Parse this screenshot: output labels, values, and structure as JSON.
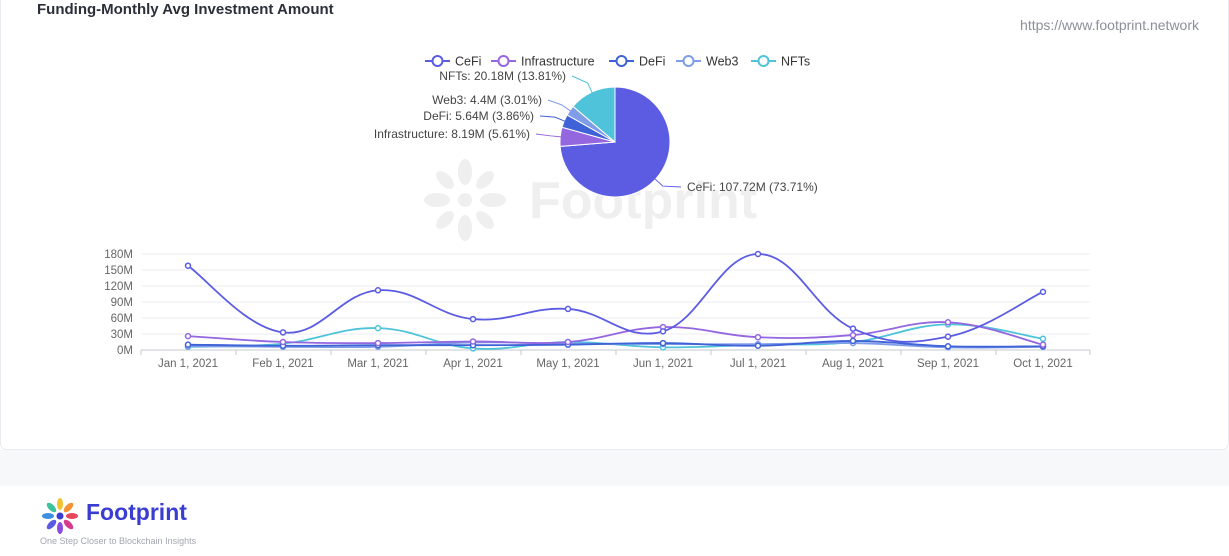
{
  "header": {
    "title": "Funding-Monthly Avg Investment Amount",
    "url": "https://www.footprint.network"
  },
  "watermark": {
    "text": "Footprint"
  },
  "footer": {
    "brand": "Footprint",
    "tagline": "One Step Closer to Blockchain Insights"
  },
  "colors": {
    "CeFi": "#5b5ce2",
    "Infrastructure": "#9466e0",
    "DeFi": "#3f62d6",
    "Web3": "#7e9ce8",
    "NFTs": "#4fc3d9"
  },
  "chart_data": [
    {
      "type": "pie",
      "legend": [
        "CeFi",
        "Infrastructure",
        "DeFi",
        "Web3",
        "NFTs"
      ],
      "legend_position": "top",
      "slices": [
        {
          "name": "CeFi",
          "value": 107.72,
          "label": "CeFi: 107.72M (73.71%)"
        },
        {
          "name": "Infrastructure",
          "value": 8.19,
          "label": "Infrastructure: 8.19M (5.61%)"
        },
        {
          "name": "DeFi",
          "value": 5.64,
          "label": "DeFi: 5.64M (3.86%)"
        },
        {
          "name": "Web3",
          "value": 4.4,
          "label": "Web3: 4.4M (3.01%)"
        },
        {
          "name": "NFTs",
          "value": 20.18,
          "label": "NFTs: 20.18M (13.81%)"
        }
      ]
    },
    {
      "type": "line",
      "x": [
        "Jan 1, 2021",
        "Feb 1, 2021",
        "Mar 1, 2021",
        "Apr 1, 2021",
        "May 1, 2021",
        "Jun 1, 2021",
        "Jul 1, 2021",
        "Aug 1, 2021",
        "Sep 1, 2021",
        "Oct 1, 2021"
      ],
      "y_ticks": [
        "0M",
        "30M",
        "60M",
        "90M",
        "120M",
        "150M",
        "180M"
      ],
      "ylim": [
        0,
        180
      ],
      "grid": true,
      "series": [
        {
          "name": "CeFi",
          "values": [
            158,
            33,
            112,
            58,
            77,
            35,
            180,
            40,
            25,
            109
          ]
        },
        {
          "name": "Infrastructure",
          "values": [
            26,
            15,
            13,
            16,
            15,
            43,
            24,
            28,
            52,
            10
          ]
        },
        {
          "name": "DeFi",
          "values": [
            10,
            8,
            9,
            9,
            10,
            13,
            8,
            17,
            7,
            7
          ]
        },
        {
          "name": "Web3",
          "values": [
            7,
            6,
            6,
            14,
            12,
            11,
            11,
            13,
            5,
            6
          ]
        },
        {
          "name": "NFTs",
          "values": [
            6,
            12,
            41,
            3,
            15,
            5,
            10,
            15,
            48,
            21
          ]
        }
      ]
    }
  ]
}
